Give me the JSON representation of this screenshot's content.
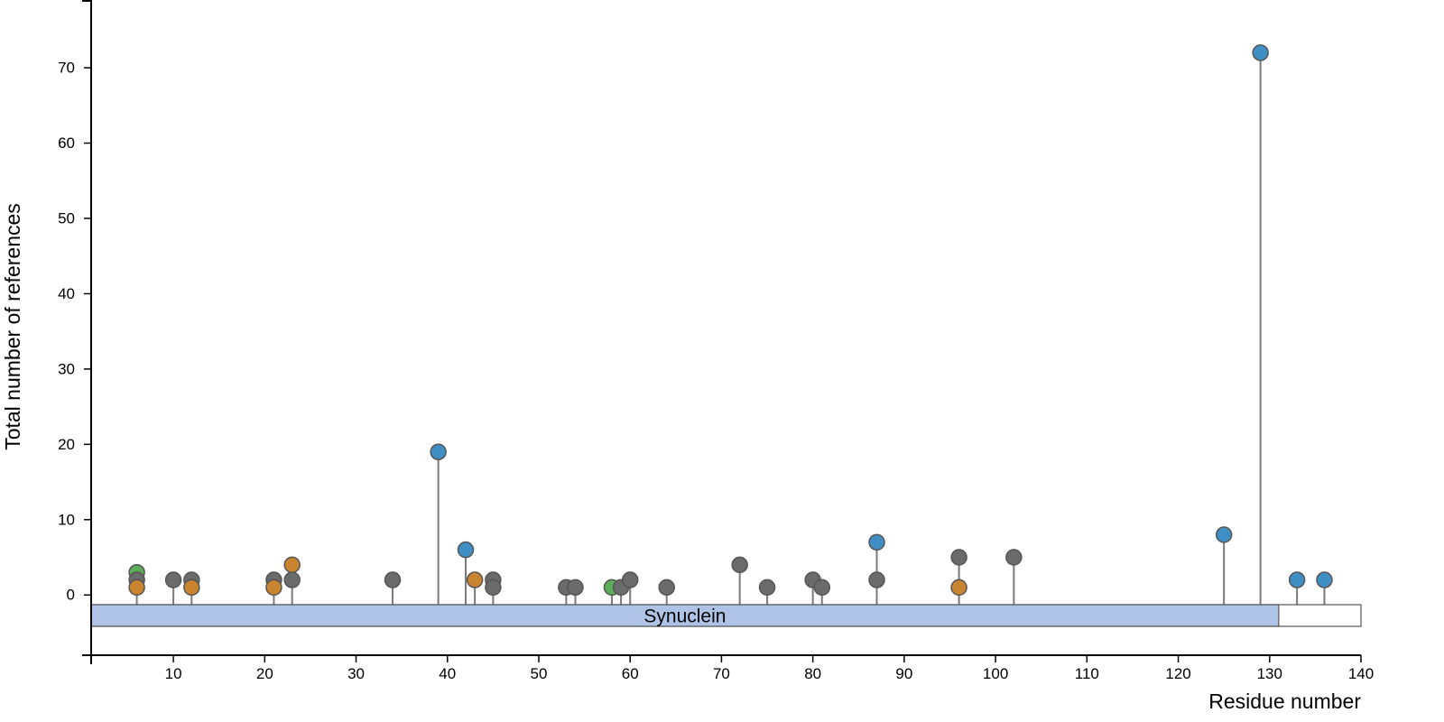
{
  "chart_data": {
    "type": "lollipop",
    "xlabel": "Residue number",
    "ylabel": "Total number of references",
    "xlim": [
      1,
      140
    ],
    "ylim": [
      -8,
      79
    ],
    "x_ticks": [
      10,
      20,
      30,
      40,
      50,
      60,
      70,
      80,
      90,
      100,
      110,
      120,
      130,
      140
    ],
    "y_ticks": [
      0,
      10,
      20,
      30,
      40,
      50,
      60,
      70
    ],
    "grid": false,
    "legend": "none",
    "colors": {
      "gray": "#6b6b6b",
      "orange": "#c8842e",
      "green": "#5cad58",
      "blue": "#3f8fc4",
      "stem": "#7a7a7a",
      "domain_fill": "#aec3e6"
    },
    "domain": {
      "label": "Synuclein",
      "start": 1,
      "end": 131
    },
    "points": [
      {
        "x": 6,
        "y": 3,
        "color": "green"
      },
      {
        "x": 6,
        "y": 2,
        "color": "gray"
      },
      {
        "x": 6,
        "y": 1,
        "color": "orange"
      },
      {
        "x": 10,
        "y": 2,
        "color": "gray"
      },
      {
        "x": 12,
        "y": 2,
        "color": "gray"
      },
      {
        "x": 12,
        "y": 1,
        "color": "orange"
      },
      {
        "x": 21,
        "y": 2,
        "color": "gray"
      },
      {
        "x": 21,
        "y": 1,
        "color": "orange"
      },
      {
        "x": 23,
        "y": 4,
        "color": "orange"
      },
      {
        "x": 23,
        "y": 2,
        "color": "gray"
      },
      {
        "x": 34,
        "y": 2,
        "color": "gray"
      },
      {
        "x": 39,
        "y": 19,
        "color": "blue"
      },
      {
        "x": 42,
        "y": 6,
        "color": "blue"
      },
      {
        "x": 43,
        "y": 2,
        "color": "orange"
      },
      {
        "x": 45,
        "y": 2,
        "color": "gray"
      },
      {
        "x": 45,
        "y": 1,
        "color": "gray"
      },
      {
        "x": 53,
        "y": 1,
        "color": "gray"
      },
      {
        "x": 54,
        "y": 1,
        "color": "gray"
      },
      {
        "x": 58,
        "y": 1,
        "color": "green"
      },
      {
        "x": 59,
        "y": 1,
        "color": "gray"
      },
      {
        "x": 60,
        "y": 2,
        "color": "gray"
      },
      {
        "x": 64,
        "y": 1,
        "color": "gray"
      },
      {
        "x": 72,
        "y": 4,
        "color": "gray"
      },
      {
        "x": 75,
        "y": 1,
        "color": "gray"
      },
      {
        "x": 80,
        "y": 2,
        "color": "gray"
      },
      {
        "x": 81,
        "y": 1,
        "color": "gray"
      },
      {
        "x": 87,
        "y": 7,
        "color": "blue"
      },
      {
        "x": 87,
        "y": 2,
        "color": "gray"
      },
      {
        "x": 96,
        "y": 5,
        "color": "gray"
      },
      {
        "x": 96,
        "y": 1,
        "color": "orange"
      },
      {
        "x": 102,
        "y": 5,
        "color": "gray"
      },
      {
        "x": 125,
        "y": 8,
        "color": "blue"
      },
      {
        "x": 129,
        "y": 72,
        "color": "blue"
      },
      {
        "x": 133,
        "y": 2,
        "color": "blue"
      },
      {
        "x": 136,
        "y": 2,
        "color": "blue"
      }
    ]
  }
}
